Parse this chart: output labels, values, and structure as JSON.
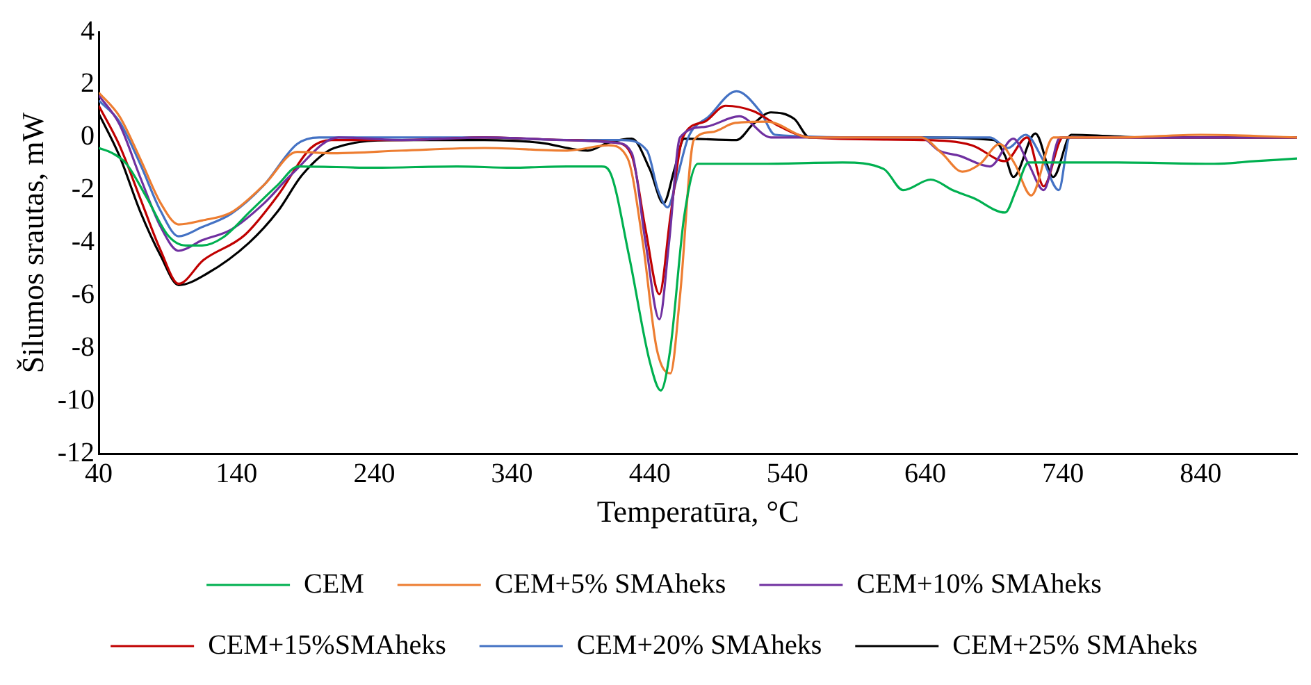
{
  "chart_data": {
    "type": "line",
    "xlabel": "Temperatūra, °C",
    "ylabel": "Šilumos srautas, mW",
    "xlim": [
      40,
      910
    ],
    "ylim": [
      -12,
      4
    ],
    "xticks": [
      40,
      140,
      240,
      340,
      440,
      540,
      640,
      740,
      840
    ],
    "yticks": [
      -12,
      -10,
      -8,
      -6,
      -4,
      -2,
      0,
      2,
      4
    ],
    "grid": false,
    "legend": "bottom",
    "marker": "none",
    "line_style": "solid",
    "series": [
      {
        "name": "CEM",
        "color": "#00b050",
        "x": [
          40,
          50,
          60,
          75,
          90,
          103,
          115,
          130,
          150,
          170,
          185,
          240,
          300,
          340,
          380,
          405,
          411,
          425,
          440,
          448,
          455,
          465,
          475,
          520,
          580,
          610,
          624,
          644,
          660,
          675,
          698,
          706,
          715,
          780,
          850,
          880,
          910
        ],
        "values": [
          -0.4,
          -0.6,
          -1.0,
          -2.3,
          -3.7,
          -4.1,
          -4.1,
          -3.8,
          -2.8,
          -1.8,
          -1.1,
          -1.15,
          -1.1,
          -1.15,
          -1.1,
          -1.1,
          -1.3,
          -4.5,
          -8.5,
          -9.6,
          -8.0,
          -3.0,
          -1.0,
          -1.0,
          -0.95,
          -1.2,
          -2.0,
          -1.6,
          -2.0,
          -2.3,
          -2.85,
          -2.0,
          -0.95,
          -0.95,
          -1.0,
          -0.9,
          -0.8
        ]
      },
      {
        "name": "CEM+5% SMAheks",
        "color": "#ed7d31",
        "x": [
          40,
          55,
          70,
          85,
          98,
          115,
          136,
          160,
          184,
          210,
          260,
          320,
          380,
          410,
          424,
          435,
          445,
          455,
          462,
          472,
          485,
          502,
          525,
          556,
          600,
          637,
          652,
          667,
          680,
          694,
          705,
          717,
          733,
          780,
          840,
          910
        ],
        "values": [
          1.7,
          0.8,
          -0.8,
          -2.5,
          -3.3,
          -3.15,
          -2.85,
          -1.8,
          -0.55,
          -0.6,
          -0.5,
          -0.4,
          -0.5,
          -0.3,
          -0.8,
          -4.0,
          -8.0,
          -8.95,
          -6.0,
          -0.1,
          0.2,
          0.55,
          0.6,
          0.0,
          0.0,
          0.0,
          -0.6,
          -1.3,
          -1.0,
          -0.25,
          -1.0,
          -2.2,
          0.0,
          0.0,
          0.1,
          0.0
        ]
      },
      {
        "name": "CEM+10% SMAheks",
        "color": "#7030a0",
        "x": [
          40,
          55,
          70,
          85,
          98,
          115,
          136,
          160,
          180,
          214,
          260,
          320,
          380,
          415,
          427,
          437,
          447,
          454,
          462,
          480,
          505,
          528,
          560,
          637,
          650,
          665,
          687,
          704,
          715,
          726,
          738,
          800,
          910
        ],
        "values": [
          1.6,
          0.5,
          -1.5,
          -3.4,
          -4.3,
          -3.9,
          -3.5,
          -2.5,
          -1.4,
          0.0,
          -0.1,
          0.0,
          -0.1,
          -0.2,
          -0.6,
          -4.0,
          -6.9,
          -4.0,
          0.0,
          0.4,
          0.8,
          0.0,
          0.0,
          0.0,
          -0.5,
          -0.7,
          -1.1,
          -0.05,
          -1.0,
          -2.0,
          0.0,
          0.0,
          0.0
        ]
      },
      {
        "name": "CEM+15%SMAheks",
        "color": "#c00000",
        "x": [
          40,
          55,
          70,
          85,
          98,
          116,
          146,
          170,
          194,
          209,
          260,
          320,
          380,
          415,
          427,
          437,
          447,
          455,
          464,
          480,
          495,
          515,
          535,
          556,
          640,
          674,
          698,
          714,
          726,
          740,
          800,
          910
        ],
        "values": [
          1.2,
          -0.3,
          -2.3,
          -4.3,
          -5.55,
          -4.65,
          -3.7,
          -2.2,
          -0.4,
          -0.1,
          -0.1,
          0.0,
          -0.1,
          -0.2,
          -0.7,
          -3.5,
          -5.95,
          -3.0,
          0.0,
          0.6,
          1.2,
          1.0,
          0.4,
          0.0,
          -0.1,
          -0.3,
          -0.9,
          0.0,
          -1.85,
          0.0,
          0.0,
          0.0
        ]
      },
      {
        "name": "CEM+20% SMAheks",
        "color": "#4472c4",
        "x": [
          40,
          55,
          70,
          85,
          98,
          115,
          136,
          160,
          184,
          200,
          260,
          320,
          380,
          420,
          438,
          446,
          453,
          460,
          468,
          483,
          503,
          520,
          531,
          600,
          687,
          700,
          713,
          725,
          737,
          745,
          800,
          910
        ],
        "values": [
          1.4,
          0.6,
          -1.0,
          -2.8,
          -3.75,
          -3.4,
          -2.9,
          -1.8,
          -0.25,
          0.0,
          0.0,
          0.0,
          -0.1,
          -0.1,
          -0.5,
          -2.0,
          -2.65,
          -1.5,
          0.0,
          0.8,
          1.75,
          1.0,
          0.1,
          0.0,
          0.0,
          -0.4,
          0.1,
          -0.8,
          -2.0,
          0.0,
          0.0,
          0.0
        ]
      },
      {
        "name": "CEM+25% SMAheks",
        "color": "#000000",
        "x": [
          40,
          55,
          70,
          85,
          98,
          119,
          149,
          170,
          188,
          211,
          260,
          320,
          360,
          395,
          410,
          427,
          440,
          450,
          458,
          465,
          503,
          515,
          528,
          545,
          556,
          640,
          690,
          698,
          704,
          720,
          733,
          746,
          800,
          910
        ],
        "values": [
          0.9,
          -0.7,
          -2.8,
          -4.5,
          -5.6,
          -5.15,
          -4.0,
          -2.8,
          -1.4,
          -0.4,
          -0.1,
          -0.1,
          -0.2,
          -0.5,
          -0.2,
          -0.05,
          -1.2,
          -2.5,
          -1.2,
          -0.05,
          -0.1,
          0.5,
          0.95,
          0.7,
          0.0,
          0.0,
          -0.1,
          -0.7,
          -1.5,
          0.15,
          -1.5,
          0.1,
          0.0,
          0.0
        ]
      }
    ]
  }
}
